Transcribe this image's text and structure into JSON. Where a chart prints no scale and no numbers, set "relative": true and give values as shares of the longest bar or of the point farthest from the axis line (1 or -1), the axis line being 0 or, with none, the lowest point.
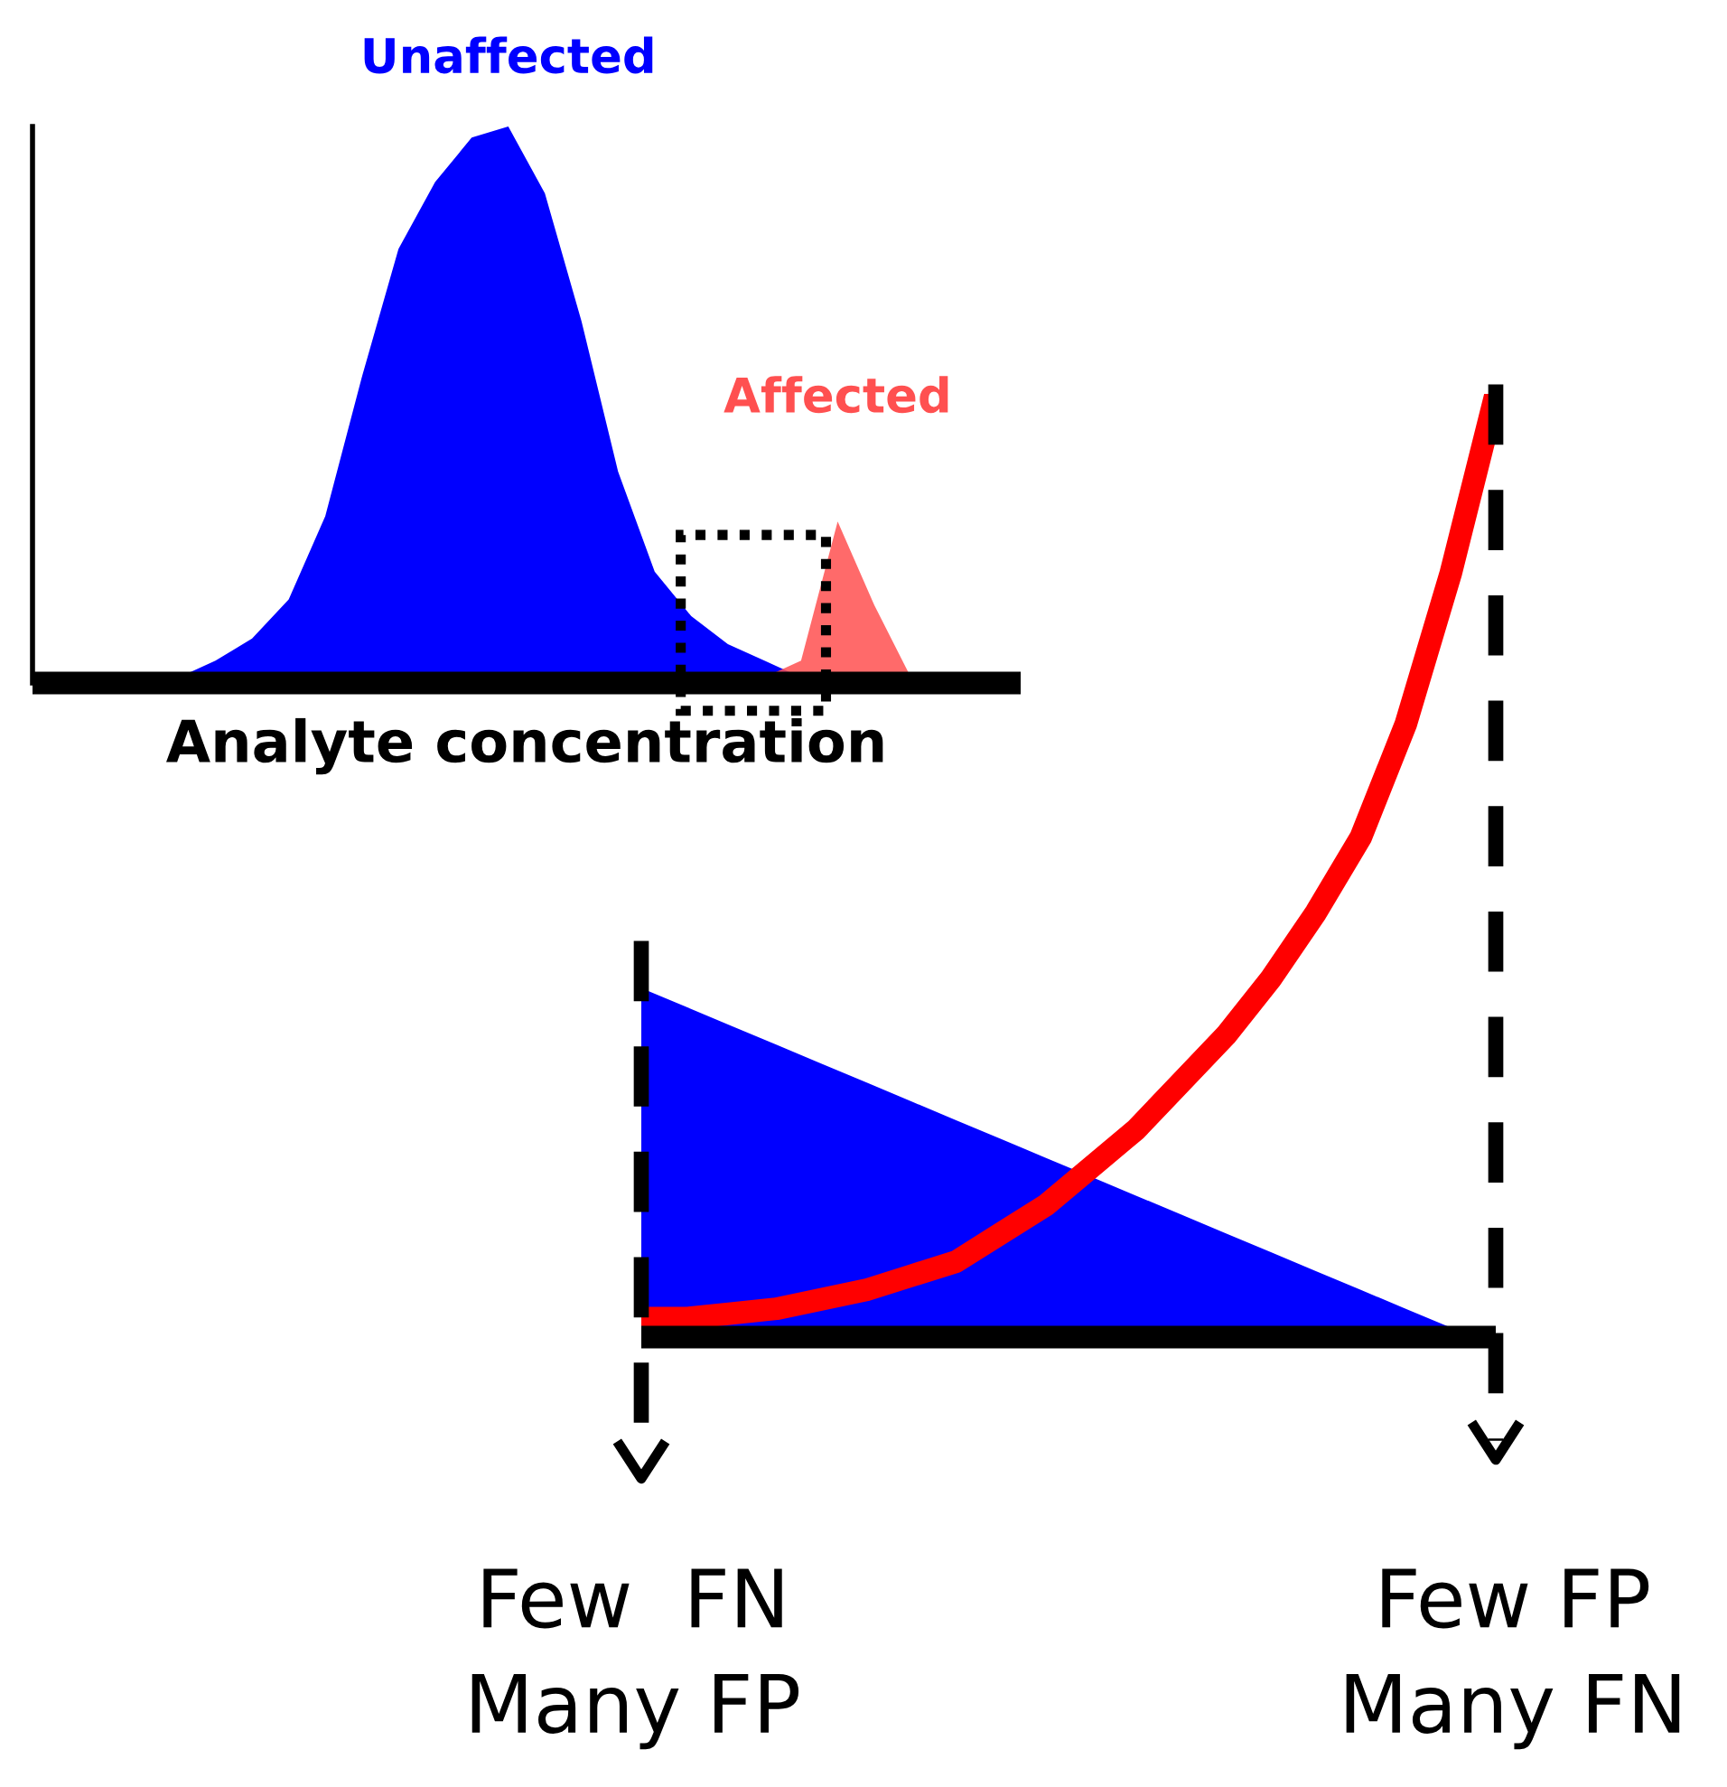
{
  "chart_data": [
    {
      "type": "area",
      "relative": true,
      "xlabel": "Analyte concentration",
      "tick_labels": false,
      "legend": false,
      "categories": [
        null,
        null,
        null,
        null,
        null,
        null,
        null,
        null,
        null,
        null,
        null,
        null,
        null,
        null,
        null,
        null,
        null,
        null,
        null,
        null,
        null,
        null,
        null,
        null,
        null,
        null,
        null,
        null
      ],
      "series": [
        {
          "name": "Unaffected",
          "color": "#0000ff",
          "values": [
            null,
            null,
            null,
            0,
            0.01,
            0.04,
            0.08,
            0.15,
            0.3,
            0.55,
            0.78,
            0.9,
            0.98,
            1.0,
            0.88,
            0.65,
            0.38,
            0.2,
            0.12,
            0.07,
            0.04,
            0.01,
            0,
            null,
            null,
            null,
            null,
            null
          ]
        },
        {
          "name": "Affected",
          "color": "#ff5050",
          "values": [
            null,
            null,
            null,
            null,
            null,
            null,
            null,
            null,
            null,
            null,
            null,
            null,
            null,
            null,
            null,
            null,
            null,
            null,
            null,
            0,
            0.01,
            0.04,
            0.29,
            0.14,
            0.01,
            0,
            null,
            null
          ]
        }
      ]
    },
    {
      "type": "area",
      "relative": true,
      "tick_labels": false,
      "legend": false,
      "annotations": [
        "Few  FN\nMany FP",
        "Few FP\nMany FN"
      ],
      "categories": [
        null,
        null,
        null,
        null,
        null,
        null,
        null,
        null,
        null,
        null,
        null,
        null,
        null,
        null,
        null,
        null,
        null,
        null,
        null,
        null
      ],
      "series": [
        {
          "color": "#0000ff",
          "values": [
            0.37,
            0.35,
            0.33,
            0.31,
            0.29,
            0.27,
            0.25,
            0.23,
            0.21,
            0.19,
            0.17,
            0.15,
            0.13,
            0.11,
            0.09,
            0.07,
            0.05,
            0.03,
            0.01,
            0
          ]
        },
        {
          "type": "line",
          "color": "#ff0000",
          "values": [
            0.02,
            0.02,
            0.025,
            0.03,
            0.04,
            0.05,
            0.065,
            0.08,
            0.11,
            0.14,
            0.18,
            0.22,
            0.27,
            0.32,
            0.38,
            0.45,
            0.53,
            0.65,
            0.81,
            1.0
          ]
        }
      ]
    }
  ]
}
